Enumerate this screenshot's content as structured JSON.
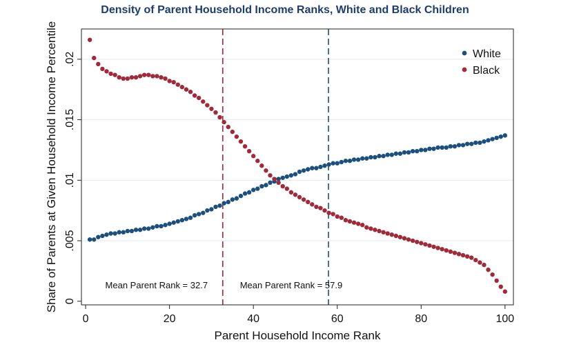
{
  "chart_data": {
    "type": "scatter",
    "title": "Density of Parent Household Income Ranks, White and Black Children",
    "xlabel": "Parent Household Income Rank",
    "ylabel": "Share of Parents at Given Household Income Percentile",
    "xlim": [
      -1,
      102
    ],
    "ylim": [
      -0.0003,
      0.0225
    ],
    "x_ticks": [
      0,
      20,
      40,
      60,
      80,
      100
    ],
    "x_tick_labels": [
      "0",
      "20",
      "40",
      "60",
      "80",
      "100"
    ],
    "y_ticks": [
      0,
      0.005,
      0.01,
      0.015,
      0.02
    ],
    "y_tick_labels": [
      "0",
      ".005",
      ".01",
      ".015",
      ".02"
    ],
    "grid": "horizontal",
    "legend_position": "top-right",
    "colors": {
      "White": "#1b4f7e",
      "Black": "#a0293a",
      "title": "#1c3d6e"
    },
    "series": [
      {
        "name": "White",
        "x_start": 1,
        "x_step": 1,
        "values": [
          0.0051,
          0.0051,
          0.0053,
          0.0054,
          0.0055,
          0.0056,
          0.0056,
          0.0057,
          0.0057,
          0.0058,
          0.0058,
          0.0059,
          0.0059,
          0.006,
          0.006,
          0.0061,
          0.0062,
          0.0062,
          0.0063,
          0.0064,
          0.0065,
          0.0066,
          0.0067,
          0.0068,
          0.0069,
          0.0071,
          0.0072,
          0.0073,
          0.0075,
          0.0076,
          0.0078,
          0.0079,
          0.0081,
          0.0082,
          0.0084,
          0.0085,
          0.0087,
          0.0089,
          0.009,
          0.0092,
          0.0093,
          0.0095,
          0.0096,
          0.0098,
          0.0099,
          0.0101,
          0.0102,
          0.0103,
          0.0104,
          0.0105,
          0.0107,
          0.0108,
          0.0109,
          0.011,
          0.011,
          0.0111,
          0.0112,
          0.0113,
          0.0114,
          0.0114,
          0.0115,
          0.0116,
          0.0116,
          0.0117,
          0.0117,
          0.0118,
          0.0118,
          0.0119,
          0.0119,
          0.012,
          0.012,
          0.0121,
          0.0121,
          0.0122,
          0.0122,
          0.0123,
          0.0123,
          0.0124,
          0.0124,
          0.0125,
          0.0125,
          0.0126,
          0.0126,
          0.0127,
          0.0127,
          0.0127,
          0.0128,
          0.0128,
          0.0129,
          0.0129,
          0.013,
          0.013,
          0.0131,
          0.0131,
          0.0132,
          0.0133,
          0.0134,
          0.0135,
          0.0136,
          0.0137
        ]
      },
      {
        "name": "Black",
        "x_start": 1,
        "x_step": 1,
        "values": [
          0.0216,
          0.0201,
          0.0196,
          0.0192,
          0.019,
          0.0188,
          0.0187,
          0.0185,
          0.0184,
          0.0184,
          0.0185,
          0.0185,
          0.0186,
          0.0187,
          0.0187,
          0.0186,
          0.0186,
          0.0185,
          0.0184,
          0.0182,
          0.0181,
          0.0179,
          0.0177,
          0.0175,
          0.0173,
          0.017,
          0.0168,
          0.0165,
          0.0162,
          0.0159,
          0.0156,
          0.0152,
          0.0148,
          0.0144,
          0.014,
          0.0136,
          0.0132,
          0.0128,
          0.0124,
          0.012,
          0.0116,
          0.0112,
          0.0108,
          0.0104,
          0.0101,
          0.0098,
          0.0095,
          0.0093,
          0.009,
          0.0088,
          0.0086,
          0.0084,
          0.0082,
          0.008,
          0.0078,
          0.0077,
          0.0075,
          0.0073,
          0.0072,
          0.007,
          0.0069,
          0.0067,
          0.0066,
          0.0065,
          0.0064,
          0.0063,
          0.0061,
          0.006,
          0.0059,
          0.0058,
          0.0057,
          0.0056,
          0.0055,
          0.0054,
          0.0053,
          0.0052,
          0.0051,
          0.005,
          0.0049,
          0.0048,
          0.0047,
          0.0046,
          0.0045,
          0.0044,
          0.0043,
          0.0042,
          0.0041,
          0.004,
          0.0039,
          0.0038,
          0.0037,
          0.0036,
          0.0034,
          0.0032,
          0.003,
          0.0026,
          0.0022,
          0.0017,
          0.0012,
          0.0008
        ]
      }
    ],
    "reference_lines": [
      {
        "x": 32.7,
        "color": "#a0293a",
        "label": "Mean Parent Rank = 32.7"
      },
      {
        "x": 57.9,
        "color": "#1b4f7e",
        "label": "Mean Parent Rank = 57.9"
      }
    ]
  }
}
